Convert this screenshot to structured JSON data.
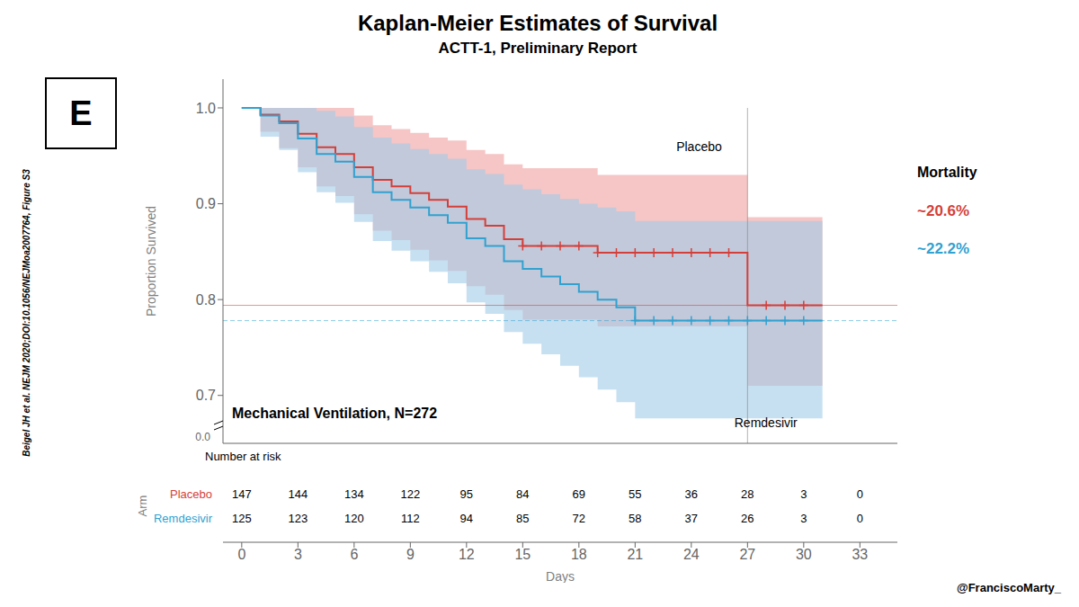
{
  "chart_data": {
    "type": "survival",
    "title": "Kaplan-Meier Estimates of Survival",
    "subtitle": "ACTT-1, Preliminary Report",
    "panel_label": "E",
    "x_label": "Days",
    "y_label": "Proportion Survived",
    "annotation": "Mechanical Ventilation, N=272",
    "side_note": "Beigel JH et al. NEJM 2020;DOI:10.1056/NEJMoa2007764, Figure S3",
    "credit": "@FranciscoMarty_",
    "zero_label": "0.0",
    "xlim": [
      -1,
      35
    ],
    "ylim": [
      0.65,
      1.03
    ],
    "xticks": [
      0,
      3,
      6,
      9,
      12,
      15,
      18,
      21,
      24,
      27,
      30,
      33
    ],
    "yticks": [
      0.7,
      0.8,
      0.9,
      {
        "value": 1.0,
        "label": "1.0"
      }
    ],
    "grid": false,
    "series": [
      {
        "name": "Placebo",
        "color": "#d43f3a",
        "band_color": "#f0a0a0",
        "x": [
          0,
          1,
          2,
          3,
          4,
          5,
          6,
          7,
          8,
          9,
          10,
          11,
          12,
          13,
          14,
          15,
          16,
          17,
          18,
          19,
          20,
          21,
          22,
          23,
          24,
          25,
          26,
          27,
          28,
          29,
          30,
          31
        ],
        "values": [
          1.0,
          0.993,
          0.986,
          0.973,
          0.959,
          0.952,
          0.938,
          0.925,
          0.918,
          0.911,
          0.904,
          0.897,
          0.884,
          0.877,
          0.863,
          0.856,
          0.856,
          0.856,
          0.856,
          0.849,
          0.849,
          0.849,
          0.849,
          0.849,
          0.849,
          0.849,
          0.849,
          0.794,
          0.794,
          0.794,
          0.794,
          0.794
        ],
        "lower": [
          1.0,
          0.975,
          0.958,
          0.938,
          0.918,
          0.908,
          0.889,
          0.872,
          0.862,
          0.852,
          0.841,
          0.83,
          0.814,
          0.805,
          0.789,
          0.779,
          0.779,
          0.779,
          0.779,
          0.772,
          0.772,
          0.772,
          0.772,
          0.772,
          0.772,
          0.772,
          0.772,
          0.71,
          0.71,
          0.71,
          0.71,
          0.71
        ],
        "upper": [
          1.0,
          1.0,
          1.0,
          1.0,
          1.0,
          1.0,
          0.992,
          0.982,
          0.978,
          0.974,
          0.969,
          0.966,
          0.956,
          0.952,
          0.941,
          0.937,
          0.937,
          0.937,
          0.937,
          0.93,
          0.93,
          0.93,
          0.93,
          0.93,
          0.93,
          0.93,
          0.93,
          0.886,
          0.886,
          0.886,
          0.886,
          0.886
        ],
        "censor_x": [
          15,
          16,
          17,
          18,
          19,
          20,
          21,
          22,
          23,
          24,
          25,
          26,
          28,
          29,
          30
        ],
        "censor_y": [
          0.856,
          0.856,
          0.856,
          0.856,
          0.849,
          0.849,
          0.849,
          0.849,
          0.849,
          0.849,
          0.849,
          0.849,
          0.794,
          0.794,
          0.794
        ],
        "at_risk": [
          147,
          144,
          134,
          122,
          95,
          84,
          69,
          55,
          36,
          28,
          3,
          0
        ]
      },
      {
        "name": "Remdesivir",
        "color": "#31a1d0",
        "band_color": "#a0cce8",
        "x": [
          0,
          1,
          2,
          3,
          4,
          5,
          6,
          7,
          8,
          9,
          10,
          11,
          12,
          13,
          14,
          15,
          16,
          17,
          18,
          19,
          20,
          21,
          22,
          23,
          24,
          25,
          26,
          27,
          28,
          29,
          30,
          31
        ],
        "values": [
          1.0,
          0.992,
          0.984,
          0.968,
          0.952,
          0.944,
          0.928,
          0.912,
          0.904,
          0.896,
          0.888,
          0.88,
          0.864,
          0.856,
          0.84,
          0.832,
          0.824,
          0.816,
          0.808,
          0.8,
          0.792,
          0.778,
          0.778,
          0.778,
          0.778,
          0.778,
          0.778,
          0.778,
          0.778,
          0.778,
          0.778,
          0.778
        ],
        "lower": [
          1.0,
          0.97,
          0.956,
          0.933,
          0.912,
          0.901,
          0.881,
          0.861,
          0.851,
          0.84,
          0.829,
          0.817,
          0.797,
          0.785,
          0.766,
          0.754,
          0.743,
          0.731,
          0.719,
          0.706,
          0.693,
          0.676,
          0.676,
          0.676,
          0.676,
          0.676,
          0.676,
          0.676,
          0.676,
          0.676,
          0.676,
          0.676
        ],
        "upper": [
          1.0,
          1.0,
          1.0,
          1.0,
          0.997,
          0.991,
          0.98,
          0.969,
          0.963,
          0.957,
          0.952,
          0.947,
          0.936,
          0.931,
          0.92,
          0.915,
          0.91,
          0.905,
          0.9,
          0.896,
          0.892,
          0.882,
          0.882,
          0.882,
          0.882,
          0.882,
          0.882,
          0.882,
          0.882,
          0.882,
          0.882,
          0.882
        ],
        "censor_x": [
          21,
          22,
          23,
          24,
          25,
          26,
          27,
          28,
          29,
          30
        ],
        "censor_y": [
          0.778,
          0.778,
          0.778,
          0.778,
          0.778,
          0.778,
          0.778,
          0.778,
          0.778,
          0.778
        ],
        "at_risk": [
          125,
          123,
          120,
          112,
          94,
          85,
          72,
          58,
          37,
          26,
          3,
          0
        ]
      }
    ],
    "reference_lines": [
      {
        "y": 0.794,
        "color": "#d43f3a",
        "line_style": "solid"
      },
      {
        "y": 0.778,
        "color": "#31a1d0",
        "line_style": "dashed"
      }
    ],
    "pointer_line": {
      "x": 27,
      "y_top": 1.0
    },
    "labels": [
      {
        "text": "Placebo",
        "x": 23.2,
        "y": 0.96
      },
      {
        "text": "Remdesivir",
        "x": 26.3,
        "y": 0.672
      }
    ],
    "mortality": {
      "title": "Mortality",
      "texts": [
        "~20.6%",
        "~22.2%"
      ]
    },
    "risk_table": {
      "title": "Number at risk",
      "row_title": "Arm",
      "x": [
        0,
        3,
        6,
        9,
        12,
        15,
        18,
        21,
        24,
        27,
        30,
        33
      ]
    }
  }
}
